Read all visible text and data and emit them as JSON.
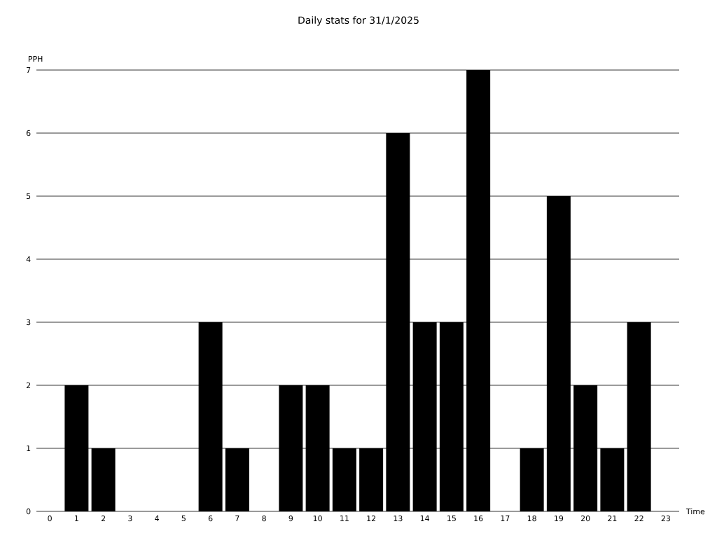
{
  "chart_data": {
    "type": "bar",
    "title": "Daily stats for 31/1/2025",
    "xlabel": "Time",
    "ylabel": "PPH",
    "categories": [
      "0",
      "1",
      "2",
      "3",
      "4",
      "5",
      "6",
      "7",
      "8",
      "9",
      "10",
      "11",
      "12",
      "13",
      "14",
      "15",
      "16",
      "17",
      "18",
      "19",
      "20",
      "21",
      "22",
      "23"
    ],
    "values": [
      0,
      2,
      1,
      0,
      0,
      0,
      3,
      1,
      0,
      2,
      2,
      1,
      1,
      6,
      3,
      3,
      7,
      0,
      1,
      5,
      2,
      1,
      3,
      0
    ],
    "color": "#000000",
    "ylim": [
      0,
      7
    ],
    "yticks": [
      0,
      1,
      2,
      3,
      4,
      5,
      6,
      7
    ],
    "grid": "y"
  }
}
